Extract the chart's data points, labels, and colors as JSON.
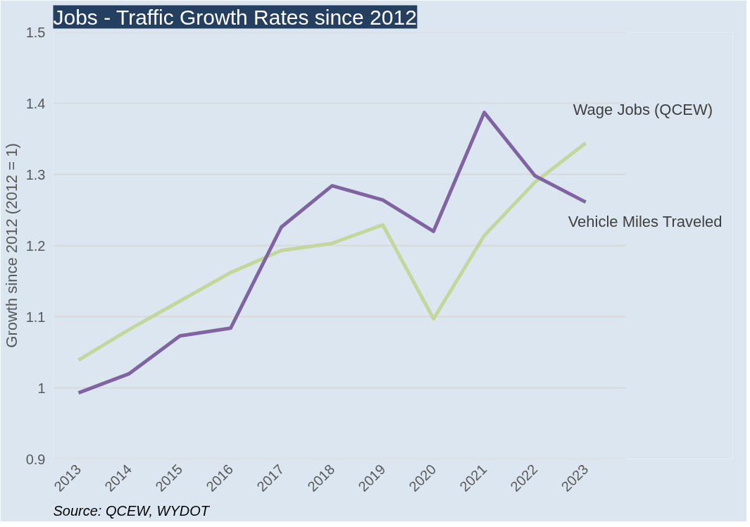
{
  "chart_data": {
    "type": "line",
    "title": "Jobs - Traffic Growth Rates since 2012",
    "ylabel": "Growth since 2012 (2012 = 1)",
    "categories": [
      "2013",
      "2014",
      "2015",
      "2016",
      "2017",
      "2018",
      "2019",
      "2020",
      "2021",
      "2022",
      "2023"
    ],
    "series": [
      {
        "name": "Wage Jobs (QCEW)",
        "color": "#c3d69b",
        "values": [
          1.039,
          1.082,
          1.122,
          1.162,
          1.193,
          1.203,
          1.229,
          1.097,
          1.214,
          1.289,
          1.344
        ]
      },
      {
        "name": "Vehicle Miles Traveled",
        "color": "#8064a2",
        "values": [
          0.993,
          1.02,
          1.073,
          1.084,
          1.226,
          1.284,
          1.264,
          1.22,
          1.387,
          1.298,
          1.261
        ]
      }
    ],
    "ylim": [
      0.9,
      1.5
    ],
    "yticks": [
      0.9,
      {
        "value": 1.0,
        "label": "1"
      },
      1.1,
      1.2,
      1.3,
      1.4,
      1.5
    ],
    "grid": "y",
    "legend": false,
    "marker": "none",
    "line_style": "solid",
    "annotations": [
      "Source: QCEW, WYDOT"
    ]
  }
}
